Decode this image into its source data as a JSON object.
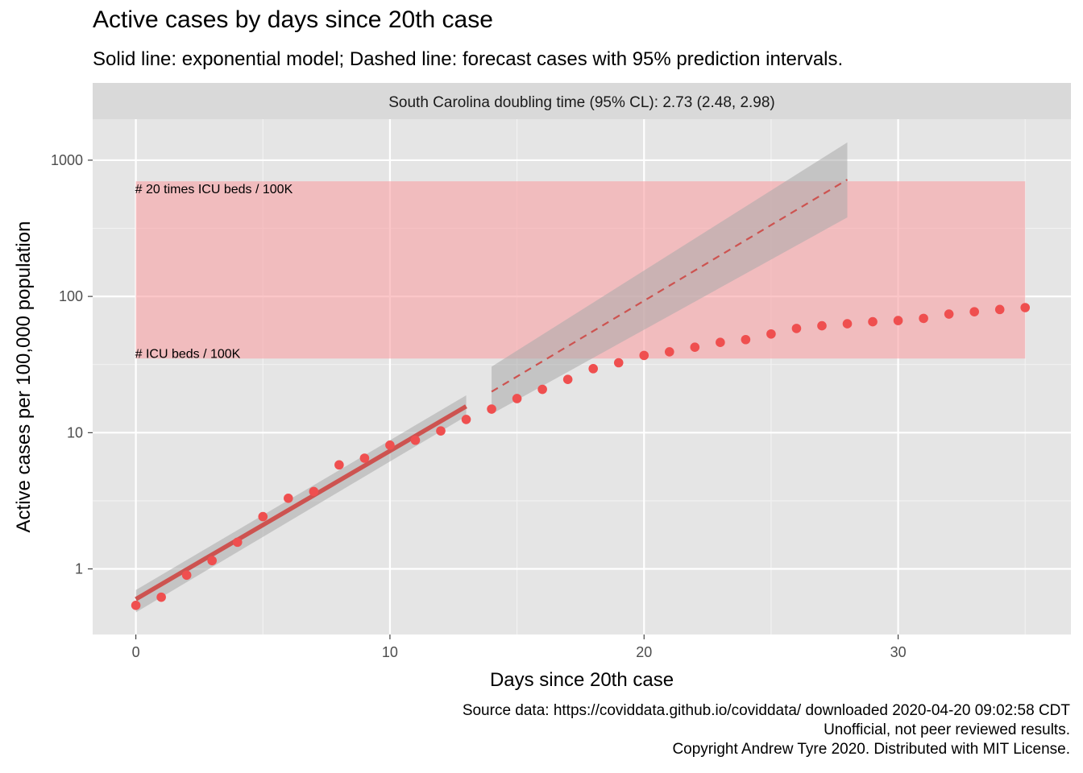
{
  "title": "Active cases by days since 20th case",
  "subtitle": "Solid line: exponential model; Dashed line: forecast cases with 95% prediction intervals.",
  "caption": [
    "Source data: https://coviddata.github.io/coviddata/ downloaded  2020-04-20 09:02:58 CDT",
    "Unofficial, not peer reviewed results.",
    "Copyright Andrew Tyre 2020. Distributed with MIT License."
  ],
  "chart_data": {
    "type": "scatter",
    "facet_label": "South Carolina doubling time (95% CL): 2.73 (2.48, 2.98)",
    "xlabel": "Days since 20th case",
    "ylabel": "Active cases per 100,000 population",
    "xlim": [
      -1.7,
      36.8
    ],
    "ylim": [
      0.33,
      2000
    ],
    "y_scale": "log10",
    "grid": true,
    "x_ticks": [
      0,
      10,
      20,
      30
    ],
    "x_tick_labels": [
      "0",
      "10",
      "20",
      "30"
    ],
    "y_ticks": [
      1,
      10,
      100,
      1000
    ],
    "y_tick_labels": [
      "1",
      "10",
      "100",
      "1000"
    ],
    "colors": {
      "panel": "#e5e5e5",
      "strip": "#d9d9d9",
      "points": "#ef4f4f",
      "fit_line": "#cd5350",
      "ribbon": "#a9a9a9",
      "icu_band": "#f8a0a4"
    },
    "icu_band": {
      "x": [
        0,
        35
      ],
      "y": [
        35,
        700
      ],
      "lower_label": "# ICU beds / 100K",
      "upper_label": "# 20 times ICU beds / 100K"
    },
    "observed": {
      "x": [
        0,
        1,
        2,
        3,
        4,
        5,
        6,
        7,
        8,
        9,
        10,
        11,
        12,
        13,
        14,
        15,
        16,
        17,
        18,
        19,
        20,
        21,
        22,
        23,
        24,
        25,
        26,
        27,
        28,
        29,
        30,
        31,
        32,
        33,
        34,
        35
      ],
      "y": [
        0.54,
        0.62,
        0.9,
        1.15,
        1.57,
        2.42,
        3.3,
        3.7,
        5.8,
        6.5,
        8.1,
        8.8,
        10.3,
        12.5,
        14.9,
        17.8,
        20.8,
        24.6,
        29.5,
        32.6,
        36.9,
        39.2,
        42.4,
        46.0,
        48.2,
        53.0,
        58.2,
        60.9,
        63.0,
        65.2,
        66.5,
        69.0,
        74.2,
        77.2,
        80.2,
        82.8
      ]
    },
    "fit": {
      "x": [
        0,
        13
      ],
      "y": [
        0.6,
        15.6
      ],
      "ci_lower": [
        0.48,
        13.2
      ],
      "ci_upper": [
        0.7,
        18.8
      ]
    },
    "forecast": {
      "x": [
        14,
        28
      ],
      "y": [
        20,
        720
      ],
      "pi_lower": [
        13.7,
        380
      ],
      "pi_upper": [
        30.5,
        1350
      ]
    }
  }
}
